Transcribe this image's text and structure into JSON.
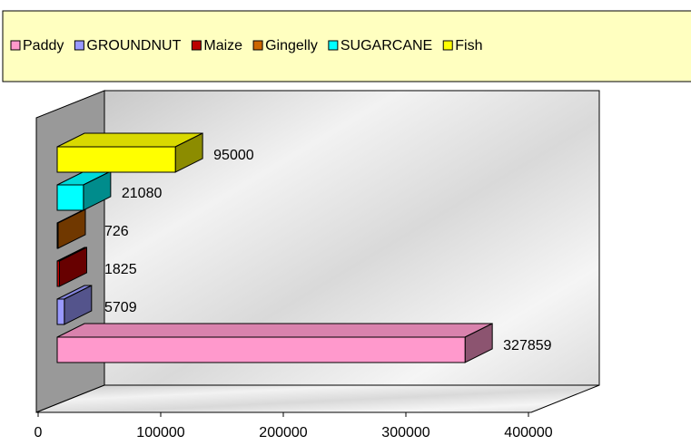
{
  "chart_data": {
    "type": "bar",
    "orientation": "horizontal",
    "series": [
      {
        "name": "Paddy",
        "color": "#ff99cc",
        "values": [
          327859
        ]
      },
      {
        "name": "GROUNDNUT",
        "color": "#9999ff",
        "values": [
          5709
        ]
      },
      {
        "name": "Maize",
        "color": "#bb0000",
        "values": [
          1825
        ]
      },
      {
        "name": "Gingelly",
        "color": "#cc6600",
        "values": [
          726
        ]
      },
      {
        "name": "SUGARCANE",
        "color": "#00ffff",
        "values": [
          21080
        ]
      },
      {
        "name": "Fish",
        "color": "#ffff00",
        "values": [
          95000
        ]
      }
    ],
    "xlim": [
      0,
      400000
    ],
    "xticks": [
      0,
      100000,
      200000,
      300000,
      400000
    ],
    "legend": "top"
  }
}
